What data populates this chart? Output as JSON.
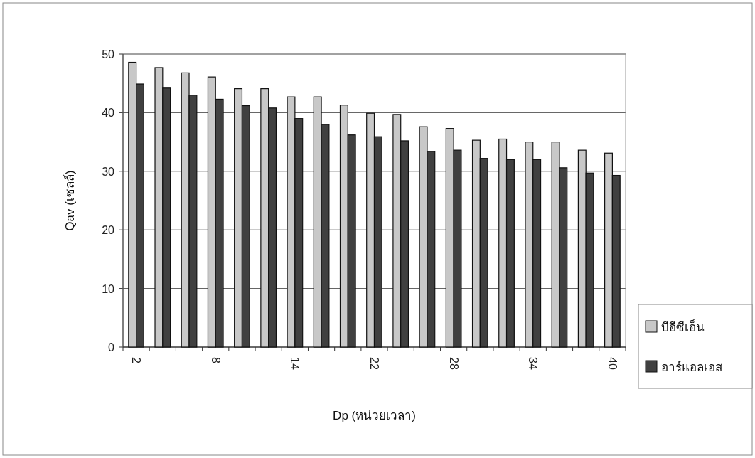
{
  "chart_data": {
    "type": "bar",
    "xlabel": "Dp (หน่วยเวลา)",
    "ylabel": "Qav (เซลล์)",
    "categories": [
      "2",
      null,
      null,
      "8",
      null,
      null,
      "14",
      null,
      null,
      "22",
      null,
      null,
      "28",
      null,
      null,
      "34",
      null,
      null,
      "40"
    ],
    "series": [
      {
        "name": "บีอีซีเอ็น",
        "color": "#c8c8c8",
        "values": [
          48.6,
          47.7,
          46.8,
          46.1,
          44.1,
          44.1,
          42.7,
          42.7,
          41.3,
          39.9,
          39.7,
          37.6,
          37.3,
          35.3,
          35.5,
          35.0,
          35.0,
          33.6,
          33.1
        ]
      },
      {
        "name": "อาร์แอลเอส",
        "color": "#404040",
        "values": [
          44.9,
          44.2,
          43.0,
          42.3,
          41.2,
          40.8,
          39.0,
          38.0,
          36.2,
          35.9,
          35.2,
          33.4,
          33.6,
          32.2,
          32.0,
          32.0,
          30.6,
          29.7,
          29.3
        ]
      }
    ],
    "ylim": [
      0,
      50
    ],
    "yticks": [
      0,
      10,
      20,
      30,
      40,
      50
    ],
    "grid": "y",
    "legend": "bottom right"
  }
}
